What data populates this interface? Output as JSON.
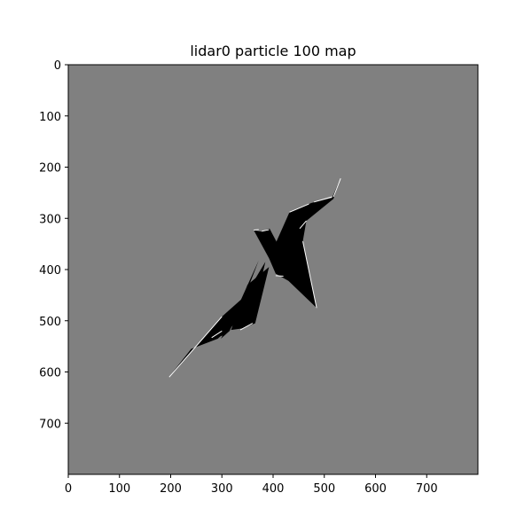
{
  "chart_data": {
    "type": "heatmap",
    "title": "lidar0 particle 100 map",
    "xlabel": "",
    "ylabel": "",
    "xlim": [
      0,
      800
    ],
    "ylim": [
      800,
      0
    ],
    "x_ticks": [
      0,
      100,
      200,
      300,
      400,
      500,
      600,
      700
    ],
    "y_ticks": [
      0,
      100,
      200,
      300,
      400,
      500,
      600,
      700
    ],
    "grid": false,
    "colors": {
      "unknown": "#808080",
      "free": "#000000",
      "occupied": "#ffffff"
    },
    "free_region_polygons": [
      [
        [
          195,
          612
        ],
        [
          300,
          492
        ],
        [
          345,
          452
        ],
        [
          385,
          385
        ],
        [
          365,
          470
        ],
        [
          292,
          535
        ],
        [
          240,
          555
        ]
      ],
      [
        [
          392,
          378
        ],
        [
          378,
          325
        ],
        [
          393,
          320
        ],
        [
          410,
          352
        ]
      ],
      [
        [
          362,
          323
        ],
        [
          398,
          330
        ],
        [
          392,
          378
        ]
      ],
      [
        [
          392,
          378
        ],
        [
          432,
          288
        ],
        [
          475,
          270
        ],
        [
          515,
          260
        ],
        [
          530,
          225
        ],
        [
          518,
          262
        ],
        [
          465,
          305
        ],
        [
          458,
          345
        ],
        [
          485,
          475
        ],
        [
          430,
          422
        ],
        [
          405,
          408
        ]
      ],
      [
        [
          298,
          535
        ],
        [
          330,
          475
        ],
        [
          372,
          382
        ],
        [
          340,
          465
        ],
        [
          315,
          520
        ]
      ],
      [
        [
          318,
          518
        ],
        [
          350,
          430
        ],
        [
          392,
          395
        ],
        [
          365,
          505
        ],
        [
          340,
          515
        ]
      ],
      [
        [
          280,
          535
        ],
        [
          330,
          480
        ],
        [
          360,
          430
        ],
        [
          338,
          490
        ],
        [
          305,
          528
        ]
      ]
    ],
    "occupied_lines": [
      [
        [
          197,
          610
        ],
        [
          300,
          492
        ]
      ],
      [
        [
          280,
          533
        ],
        [
          300,
          520
        ]
      ],
      [
        [
          336,
          518
        ],
        [
          360,
          505
        ]
      ],
      [
        [
          432,
          288
        ],
        [
          470,
          272
        ]
      ],
      [
        [
          480,
          268
        ],
        [
          515,
          258
        ]
      ],
      [
        [
          518,
          258
        ],
        [
          532,
          222
        ]
      ],
      [
        [
          458,
          345
        ],
        [
          485,
          475
        ]
      ],
      [
        [
          465,
          305
        ],
        [
          452,
          320
        ]
      ],
      [
        [
          378,
          325
        ],
        [
          392,
          322
        ]
      ],
      [
        [
          362,
          323
        ],
        [
          372,
          322
        ]
      ],
      [
        [
          405,
          412
        ],
        [
          420,
          413
        ]
      ]
    ]
  }
}
